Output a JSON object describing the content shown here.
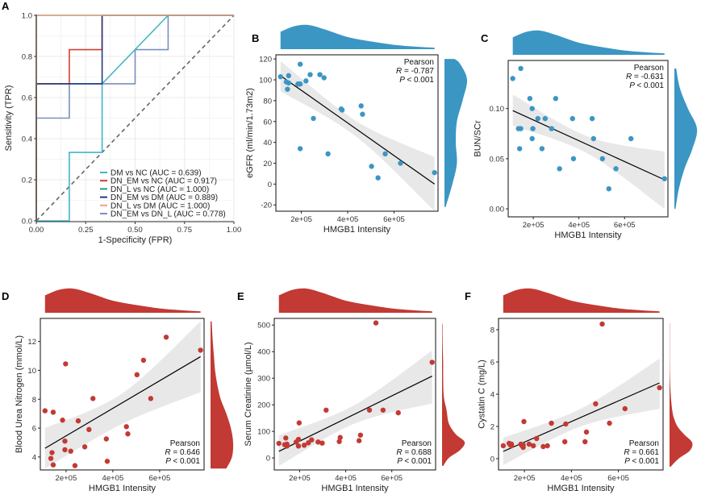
{
  "colors": {
    "blue": "#3b96c4",
    "red": "#c23a33",
    "ci_band": "#e6e6e6",
    "fit_line": "#000000",
    "grid": "#ebebeb",
    "diagonal": "#666666"
  },
  "chart_data": [
    {
      "panel": "A",
      "type": "line",
      "title": "",
      "xlabel": "1-Specificity (FPR)",
      "ylabel": "Sensitivity (TPR)",
      "xlim": [
        0,
        1
      ],
      "ylim": [
        0,
        1
      ],
      "xticks": [
        "0.00",
        "0.25",
        "0.50",
        "0.75",
        "1.00"
      ],
      "yticks": [
        "0.0",
        "0.2",
        "0.4",
        "0.6",
        "0.8",
        "1.0"
      ],
      "grid": true,
      "legend_position": "bottom-right",
      "reference_line": "diagonal dashed",
      "series": [
        {
          "name": "DM vs NC (AUC = 0.639)",
          "color": "#3fb6c8",
          "x": [
            0,
            0.167,
            0.167,
            0.333,
            0.333,
            0.333,
            0.667,
            1.0
          ],
          "y": [
            0,
            0,
            0.333,
            0.333,
            0.667,
            0.667,
            1.0,
            1.0
          ]
        },
        {
          "name": "DN_EM vs NC (AUC = 0.917)",
          "color": "#d2412f",
          "x": [
            0,
            0,
            0.167,
            0.167,
            0.333,
            0.333,
            1.0
          ],
          "y": [
            0,
            0.667,
            0.667,
            0.833,
            0.833,
            1.0,
            1.0
          ]
        },
        {
          "name": "DN_L vs NC (AUC = 1.000)",
          "color": "#1b9e77",
          "x": [
            0,
            0,
            1.0
          ],
          "y": [
            0,
            1.0,
            1.0
          ]
        },
        {
          "name": "DN_EM vs DM (AUC = 0.889)",
          "color": "#253a7c",
          "x": [
            0,
            0,
            0.333,
            0.333,
            1.0
          ],
          "y": [
            0,
            0.667,
            0.667,
            1.0,
            1.0
          ]
        },
        {
          "name": "DN_L vs DM (AUC = 1.000)",
          "color": "#f0a08a",
          "x": [
            0,
            0,
            1.0
          ],
          "y": [
            0,
            1.0,
            1.0
          ]
        },
        {
          "name": "DN_EM vs DN_L (AUC = 0.778)",
          "color": "#7a8fbd",
          "x": [
            0,
            0,
            0.167,
            0.167,
            0.5,
            0.5,
            0.667,
            0.667,
            1.0
          ],
          "y": [
            0,
            0.5,
            0.5,
            0.667,
            0.667,
            0.833,
            0.833,
            1.0,
            1.0
          ]
        }
      ]
    },
    {
      "panel": "B",
      "type": "scatter",
      "color": "blue",
      "xlabel": "HMGB1 Intensity",
      "ylabel": "eGFR (ml/min/1.73m2)",
      "xlim": [
        90000,
        790000
      ],
      "ylim": [
        -26,
        124
      ],
      "xticks": [
        {
          "v": 200000,
          "label": "2e+05"
        },
        {
          "v": 400000,
          "label": "4e+05"
        },
        {
          "v": 600000,
          "label": "6e+05"
        }
      ],
      "yticks": [
        {
          "v": -20,
          "label": "-20"
        },
        {
          "v": 0,
          "label": "0"
        },
        {
          "v": 20,
          "label": "20"
        },
        {
          "v": 40,
          "label": "40"
        },
        {
          "v": 60,
          "label": "60"
        },
        {
          "v": 80,
          "label": "80"
        },
        {
          "v": 100,
          "label": "100"
        },
        {
          "v": 120,
          "label": "120"
        }
      ],
      "annotation": {
        "method": "Pearson",
        "r_text": "= -0.787",
        "p_text": "< 0.001",
        "position": "top-right"
      },
      "fit": {
        "x": [
          110000,
          775000
        ],
        "y": [
          104,
          0
        ]
      },
      "ci": {
        "x": [
          110000,
          440000,
          775000
        ],
        "upper": [
          118,
          60,
          26
        ],
        "lower": [
          89,
          45,
          -26
        ]
      },
      "points": {
        "x": [
          110000,
          135000,
          140000,
          145000,
          145000,
          185000,
          190000,
          195000,
          195000,
          220000,
          238000,
          252000,
          280000,
          298000,
          315000,
          372000,
          376000,
          458000,
          464000,
          503000,
          531000,
          562000,
          628000,
          775000,
          195000
        ],
        "y": [
          103,
          98,
          91,
          104,
          97,
          96,
          96,
          96,
          115,
          99,
          105,
          63,
          105,
          102,
          29,
          72,
          71,
          75,
          67,
          17,
          6,
          29,
          20,
          11,
          34
        ]
      },
      "top_density": {
        "x": [
          110000,
          170000,
          230000,
          300000,
          400000,
          500000,
          600000,
          700000,
          775000
        ],
        "d": [
          0.72,
          0.95,
          1.0,
          0.82,
          0.5,
          0.32,
          0.18,
          0.1,
          0.06
        ]
      },
      "right_density": {
        "y": [
          -22,
          0,
          20,
          40,
          60,
          80,
          100,
          115,
          120
        ],
        "d": [
          0.05,
          0.35,
          0.55,
          0.5,
          0.55,
          0.8,
          1.0,
          0.7,
          0.45
        ]
      }
    },
    {
      "panel": "C",
      "type": "scatter",
      "color": "blue",
      "xlabel": "HMGB1 Intensity",
      "ylabel": "BUN/SCr",
      "xlim": [
        90000,
        790000
      ],
      "ylim": [
        -0.008,
        0.148
      ],
      "xticks": [
        {
          "v": 200000,
          "label": "2e+05"
        },
        {
          "v": 400000,
          "label": "4e+05"
        },
        {
          "v": 600000,
          "label": "6e+05"
        }
      ],
      "yticks": [
        {
          "v": 0.0,
          "label": "0.00"
        },
        {
          "v": 0.05,
          "label": "0.05"
        },
        {
          "v": 0.1,
          "label": "0.10"
        }
      ],
      "annotation": {
        "method": "Pearson",
        "r_text": "= -0.631",
        "p_text": "< 0.001",
        "position": "top-right"
      },
      "fit": {
        "x": [
          110000,
          775000
        ],
        "y": [
          0.098,
          0.029
        ]
      },
      "ci": {
        "x": [
          110000,
          440000,
          775000
        ],
        "upper": [
          0.114,
          0.072,
          0.057
        ],
        "lower": [
          0.083,
          0.055,
          0.0
        ]
      },
      "points": {
        "x": [
          110000,
          135000,
          140000,
          145000,
          145000,
          185000,
          195000,
          195000,
          198000,
          220000,
          238000,
          252000,
          280000,
          298000,
          315000,
          372000,
          376000,
          458000,
          464000,
          503000,
          531000,
          562000,
          628000,
          775000
        ],
        "y": [
          0.13,
          0.08,
          0.06,
          0.14,
          0.08,
          0.11,
          0.07,
          0.1,
          0.08,
          0.09,
          0.06,
          0.09,
          0.08,
          0.11,
          0.04,
          0.09,
          0.05,
          0.09,
          0.07,
          0.05,
          0.02,
          0.04,
          0.07,
          0.03
        ]
      },
      "top_density": {
        "x": [
          110000,
          170000,
          230000,
          300000,
          400000,
          500000,
          600000,
          700000,
          775000
        ],
        "d": [
          0.72,
          0.95,
          1.0,
          0.82,
          0.5,
          0.32,
          0.18,
          0.1,
          0.06
        ]
      },
      "right_density": {
        "y": [
          0.0,
          0.02,
          0.04,
          0.06,
          0.08,
          0.1,
          0.12,
          0.14
        ],
        "d": [
          0.05,
          0.2,
          0.45,
          0.8,
          1.0,
          0.6,
          0.25,
          0.08
        ]
      }
    },
    {
      "panel": "D",
      "type": "scatter",
      "color": "red",
      "xlabel": "HMGB1 Intensity",
      "ylabel": "Blood Urea Nitrogen (mmol/L)",
      "xlim": [
        90000,
        790000
      ],
      "ylim": [
        3.1,
        13.6
      ],
      "xticks": [
        {
          "v": 200000,
          "label": "2e+05"
        },
        {
          "v": 400000,
          "label": "4e+05"
        },
        {
          "v": 600000,
          "label": "6e+05"
        }
      ],
      "yticks": [
        {
          "v": 4,
          "label": "4"
        },
        {
          "v": 6,
          "label": "6"
        },
        {
          "v": 8,
          "label": "8"
        },
        {
          "v": 10,
          "label": "10"
        },
        {
          "v": 12,
          "label": "12"
        }
      ],
      "annotation": {
        "method": "Pearson",
        "r_text": "= 0.646",
        "p_text": "< 0.001",
        "position": "bottom-right"
      },
      "fit": {
        "x": [
          110000,
          775000
        ],
        "y": [
          4.6,
          10.95
        ]
      },
      "ci": {
        "x": [
          110000,
          440000,
          775000
        ],
        "upper": [
          6.0,
          8.4,
          13.4
        ],
        "lower": [
          3.2,
          6.3,
          8.5
        ]
      },
      "points": {
        "x": [
          110000,
          135000,
          140000,
          145000,
          145000,
          185000,
          195000,
          195000,
          198000,
          220000,
          238000,
          252000,
          280000,
          298000,
          315000,
          372000,
          376000,
          458000,
          464000,
          503000,
          531000,
          562000,
          628000,
          775000
        ],
        "y": [
          7.2,
          3.9,
          4.3,
          3.45,
          7.1,
          6.55,
          5.1,
          4.5,
          10.45,
          4.4,
          3.4,
          6.5,
          4.7,
          5.9,
          8.05,
          5.25,
          3.7,
          6.1,
          5.6,
          9.7,
          10.7,
          8.05,
          12.3,
          11.4
        ]
      },
      "top_density": {
        "x": [
          110000,
          170000,
          230000,
          300000,
          400000,
          500000,
          600000,
          700000,
          775000
        ],
        "d": [
          0.72,
          0.95,
          1.0,
          0.82,
          0.5,
          0.32,
          0.18,
          0.1,
          0.06
        ]
      },
      "right_density": {
        "y": [
          3.2,
          4,
          5,
          6,
          7,
          8,
          9,
          10,
          11,
          12,
          13.4
        ],
        "d": [
          0.7,
          0.95,
          1.0,
          0.9,
          0.7,
          0.45,
          0.3,
          0.2,
          0.15,
          0.1,
          0.05
        ]
      }
    },
    {
      "panel": "E",
      "type": "scatter",
      "color": "red",
      "xlabel": "HMGB1 Intensity",
      "ylabel": "Serum Creatinine (µmol/L)",
      "xlim": [
        90000,
        790000
      ],
      "ylim": [
        -45,
        525
      ],
      "xticks": [
        {
          "v": 200000,
          "label": "2e+05"
        },
        {
          "v": 400000,
          "label": "4e+05"
        },
        {
          "v": 600000,
          "label": "6e+05"
        }
      ],
      "yticks": [
        {
          "v": 0,
          "label": "0"
        },
        {
          "v": 100,
          "label": "100"
        },
        {
          "v": 200,
          "label": "200"
        },
        {
          "v": 300,
          "label": "300"
        },
        {
          "v": 400,
          "label": "400"
        },
        {
          "v": 500,
          "label": "500"
        }
      ],
      "annotation": {
        "method": "Pearson",
        "r_text": "= 0.688",
        "p_text": "< 0.001",
        "position": "bottom-right"
      },
      "fit": {
        "x": [
          110000,
          775000
        ],
        "y": [
          25,
          308
        ]
      },
      "ci": {
        "x": [
          110000,
          440000,
          775000
        ],
        "upper": [
          85,
          200,
          405
        ],
        "lower": [
          -30,
          130,
          205
        ]
      },
      "points": {
        "x": [
          110000,
          135000,
          140000,
          145000,
          145000,
          185000,
          195000,
          195000,
          198000,
          220000,
          238000,
          252000,
          280000,
          298000,
          315000,
          372000,
          376000,
          458000,
          464000,
          503000,
          531000,
          562000,
          628000,
          775000
        ],
        "y": [
          55,
          50,
          75,
          45,
          52,
          60,
          45,
          70,
          132,
          48,
          57,
          68,
          60,
          56,
          180,
          62,
          77,
          65,
          86,
          180,
          508,
          180,
          170,
          360
        ]
      },
      "top_density": {
        "x": [
          110000,
          170000,
          230000,
          300000,
          400000,
          500000,
          600000,
          700000,
          775000
        ],
        "d": [
          0.72,
          0.95,
          1.0,
          0.82,
          0.5,
          0.32,
          0.18,
          0.1,
          0.06
        ]
      },
      "right_density": {
        "y": [
          -30,
          0,
          30,
          60,
          90,
          130,
          180,
          230,
          300,
          360,
          420,
          505
        ],
        "d": [
          0.05,
          0.3,
          0.8,
          1.0,
          0.6,
          0.3,
          0.2,
          0.08,
          0.05,
          0.05,
          0.03,
          0.02
        ]
      }
    },
    {
      "panel": "F",
      "type": "scatter",
      "color": "red",
      "xlabel": "HMGB1 Intensity",
      "ylabel": "Cystatin C (mg/L)",
      "xlim": [
        90000,
        790000
      ],
      "ylim": [
        -0.7,
        8.7
      ],
      "xticks": [
        {
          "v": 200000,
          "label": "2e+05"
        },
        {
          "v": 400000,
          "label": "4e+05"
        },
        {
          "v": 600000,
          "label": "6e+05"
        }
      ],
      "yticks": [
        {
          "v": 0,
          "label": "0"
        },
        {
          "v": 2,
          "label": "2"
        },
        {
          "v": 4,
          "label": "4"
        },
        {
          "v": 6,
          "label": "6"
        },
        {
          "v": 8,
          "label": "8"
        }
      ],
      "annotation": {
        "method": "Pearson",
        "r_text": "= 0.661",
        "p_text": "< 0.001",
        "position": "bottom-right"
      },
      "fit": {
        "x": [
          110000,
          775000
        ],
        "y": [
          0.45,
          4.7
        ]
      },
      "ci": {
        "x": [
          110000,
          440000,
          775000
        ],
        "upper": [
          1.3,
          3.1,
          6.2
        ],
        "lower": [
          -0.4,
          2.0,
          3.1
        ]
      },
      "points": {
        "x": [
          110000,
          135000,
          140000,
          145000,
          145000,
          185000,
          190000,
          195000,
          195000,
          198000,
          220000,
          238000,
          252000,
          280000,
          298000,
          315000,
          372000,
          376000,
          458000,
          464000,
          503000,
          531000,
          562000,
          628000,
          775000
        ],
        "y": [
          0.8,
          0.95,
          0.85,
          0.8,
          0.9,
          0.9,
          0.8,
          0.7,
          0.85,
          2.3,
          0.9,
          0.8,
          1.25,
          0.75,
          0.8,
          2.2,
          1.05,
          2.15,
          1.05,
          1.65,
          3.4,
          8.35,
          2.2,
          3.1,
          4.4
        ]
      },
      "top_density": {
        "x": [
          110000,
          170000,
          230000,
          300000,
          400000,
          500000,
          600000,
          700000,
          775000
        ],
        "d": [
          0.72,
          0.95,
          1.0,
          0.82,
          0.5,
          0.32,
          0.18,
          0.1,
          0.06
        ]
      },
      "right_density": {
        "y": [
          -0.5,
          0,
          0.5,
          1.0,
          1.5,
          2.0,
          2.5,
          3.0,
          4.0,
          5.0,
          6.0,
          7.0,
          8.4
        ],
        "d": [
          0.05,
          0.4,
          0.9,
          1.0,
          0.65,
          0.35,
          0.2,
          0.12,
          0.05,
          0.02,
          0.01,
          0.01,
          0.01
        ]
      }
    }
  ]
}
